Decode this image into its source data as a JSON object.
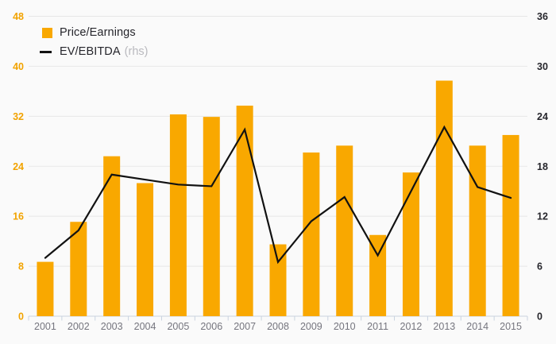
{
  "legend": {
    "pe_label": "Price/Earnings",
    "ev_label": "EV/EBITDA",
    "ev_suffix": "(rhs)"
  },
  "chart_data": {
    "type": "bar",
    "title": "",
    "categories": [
      "2001",
      "2002",
      "2003",
      "2004",
      "2005",
      "2006",
      "2007",
      "2008",
      "2009",
      "2010",
      "2011",
      "2012",
      "2013",
      "2014",
      "2015"
    ],
    "series": [
      {
        "name": "Price/Earnings",
        "chart_type": "bar",
        "axis": "left",
        "color": "#f9a800",
        "values": [
          8.7,
          15.1,
          25.6,
          21.3,
          32.3,
          31.9,
          33.7,
          11.5,
          26.2,
          27.3,
          13.0,
          23.0,
          37.7,
          27.3,
          29.0
        ]
      },
      {
        "name": "EV/EBITDA (rhs)",
        "chart_type": "line",
        "axis": "right",
        "color": "#121212",
        "values": [
          7.0,
          10.3,
          17.0,
          16.4,
          15.8,
          15.6,
          22.4,
          6.5,
          11.4,
          14.3,
          7.3,
          15.0,
          22.7,
          15.5,
          14.2
        ]
      }
    ],
    "axes": {
      "left": {
        "min": 0,
        "max": 48,
        "ticks": [
          0,
          8,
          16,
          24,
          32,
          40,
          48
        ]
      },
      "right": {
        "min": 0,
        "max": 36,
        "ticks": [
          0,
          6,
          12,
          18,
          24,
          30,
          36
        ]
      }
    },
    "grid": true,
    "legend_position": "top-left"
  },
  "colors": {
    "background": "#fafafa",
    "bar": "#f9a800",
    "line": "#121212",
    "grid": "#e7e7e7",
    "axis_line": "#c9d3df",
    "tick": "#c9d3df",
    "year_label": "#75757e",
    "left_tick_label": "#f2a300",
    "right_tick_label": "#26262c"
  }
}
